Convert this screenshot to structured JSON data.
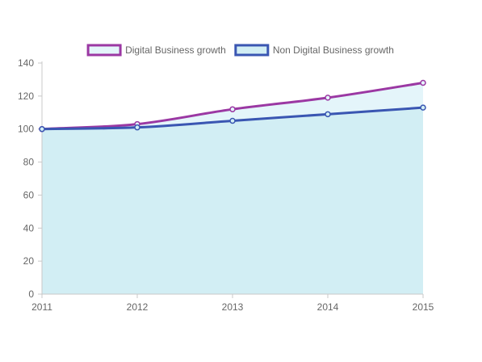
{
  "chart_data": {
    "type": "area",
    "x": [
      "2011",
      "2012",
      "2013",
      "2014",
      "2015"
    ],
    "series": [
      {
        "name": "Digital Business growth",
        "values": [
          100,
          103,
          112,
          119,
          128
        ],
        "line_color": "#9b38a3",
        "fill_color": "#e4f5fa"
      },
      {
        "name": "Non Digital Business growth",
        "values": [
          100,
          101,
          105,
          109,
          113
        ],
        "line_color": "#3a56b2",
        "fill_color": "#d2eef4"
      }
    ],
    "ylim": [
      0,
      140
    ],
    "yticks": [
      0,
      20,
      40,
      60,
      80,
      100,
      120,
      140
    ],
    "grid": false,
    "legend_position": "top-center",
    "title": "",
    "xlabel": "",
    "ylabel": ""
  }
}
